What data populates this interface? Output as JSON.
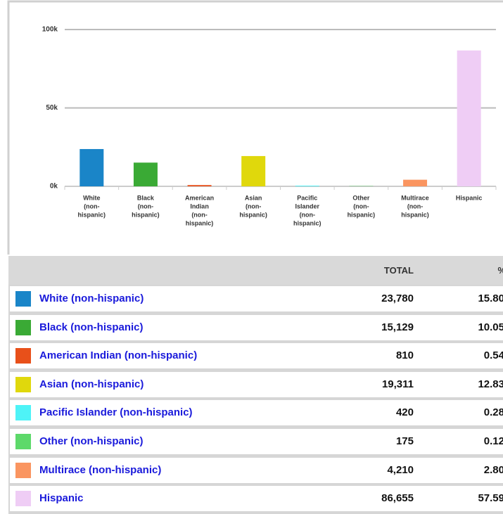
{
  "chart_data": {
    "type": "bar",
    "categories": [
      [
        "White",
        "(non-",
        "hispanic)"
      ],
      [
        "Black",
        "(non-",
        "hispanic)"
      ],
      [
        "American",
        "Indian",
        "(non-",
        "hispanic)"
      ],
      [
        "Asian",
        "(non-",
        "hispanic)"
      ],
      [
        "Pacific",
        "Islander",
        "(non-",
        "hispanic)"
      ],
      [
        "Other",
        "(non-",
        "hispanic)"
      ],
      [
        "Multirace",
        "(non-",
        "hispanic)"
      ],
      [
        "Hispanic"
      ]
    ],
    "values": [
      23780,
      15129,
      810,
      19311,
      420,
      175,
      4210,
      86655
    ],
    "colors": [
      "#1a85c8",
      "#3aaa35",
      "#e8501a",
      "#e0d80c",
      "#4ef3f7",
      "#5dd96a",
      "#fa9560",
      "#efcdf5"
    ],
    "ylim": [
      0,
      100000
    ],
    "yticks": [
      {
        "value": 0,
        "label": "0k"
      },
      {
        "value": 50000,
        "label": "50k"
      },
      {
        "value": 100000,
        "label": "100k"
      }
    ],
    "grid": true
  },
  "table": {
    "header": [
      "TOTAL",
      "%"
    ],
    "rows": [
      [
        "White (non-hispanic)",
        "23,780",
        "15.80"
      ],
      [
        "Black (non-hispanic)",
        "15,129",
        "10.05"
      ],
      [
        "American Indian (non-hispanic)",
        "810",
        "0.54"
      ],
      [
        "Asian (non-hispanic)",
        "19,311",
        "12.83"
      ],
      [
        "Pacific Islander (non-hispanic)",
        "420",
        "0.28"
      ],
      [
        "Other (non-hispanic)",
        "175",
        "0.12"
      ],
      [
        "Multirace (non-hispanic)",
        "4,210",
        "2.80"
      ],
      [
        "Hispanic",
        "86,655",
        "57.59"
      ]
    ]
  }
}
